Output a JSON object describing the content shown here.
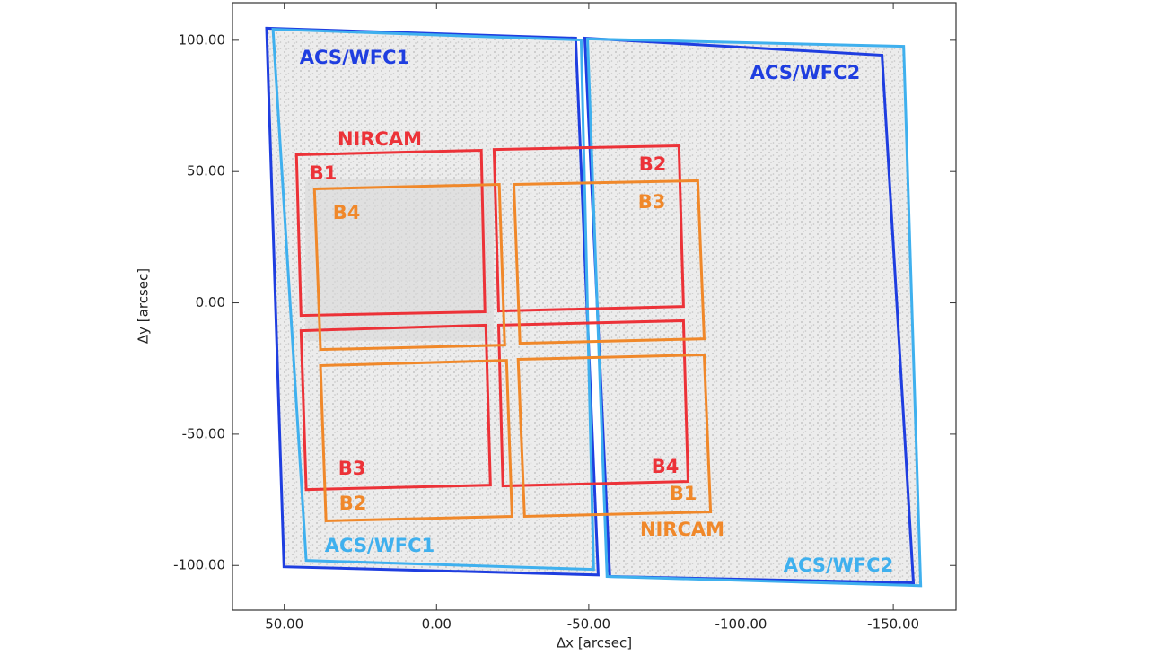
{
  "chart_data": {
    "type": "footprint",
    "xlabel": "Δx  [arcsec]",
    "ylabel": "Δy  [arcsec]",
    "xlim": [
      67,
      -170.6
    ],
    "ylim": [
      -117,
      114.3
    ],
    "xticks": [
      {
        "value": 50,
        "label": "50.00"
      },
      {
        "value": 0,
        "label": "0.00"
      },
      {
        "value": -50,
        "label": "-50.00"
      },
      {
        "value": -100,
        "label": "-100.00"
      },
      {
        "value": -150,
        "label": "-150.00"
      }
    ],
    "yticks": [
      {
        "value": 100,
        "label": "100.00"
      },
      {
        "value": 50,
        "label": "50.00"
      },
      {
        "value": 0,
        "label": "0.00"
      },
      {
        "value": -50,
        "label": "-50.00"
      },
      {
        "value": -100,
        "label": "-100.00"
      }
    ],
    "series": [
      {
        "name": "ACS/WFC1",
        "color": "#1f3ee0",
        "x": [
          55.8,
          -45.7,
          -53.1,
          50.1
        ],
        "y": [
          104.6,
          100.8,
          -103.6,
          -100.5
        ]
      },
      {
        "name": "ACS/WFC2",
        "color": "#1f3ee0",
        "x": [
          -48.7,
          -146.3,
          -156.6,
          -56.9
        ],
        "y": [
          100.8,
          94.3,
          -106.6,
          -104.2
        ]
      },
      {
        "name": "ACS/WFC1",
        "color": "#3fb0ee",
        "x": [
          53.7,
          -47.5,
          -51.6,
          42.8
        ],
        "y": [
          104.2,
          100.1,
          -101.5,
          -98.1
        ]
      },
      {
        "name": "ACS/WFC2",
        "color": "#3fb0ee",
        "x": [
          -49.6,
          -153.4,
          -159.0,
          -56.0
        ],
        "y": [
          100.5,
          97.7,
          -107.7,
          -104.2
        ]
      },
      {
        "name": "NIRCAM",
        "color": "#ec3238",
        "detectors": [
          {
            "name": "B1",
            "x": [
              46.0,
              -14.7,
              -15.9,
              44.5
            ],
            "y": [
              56.4,
              58.1,
              -3.4,
              -4.8
            ]
          },
          {
            "name": "B2",
            "x": [
              -18.9,
              -79.6,
              -81.1,
              -20.4
            ],
            "y": [
              58.4,
              59.8,
              -1.4,
              -3.1
            ]
          },
          {
            "name": "B3",
            "x": [
              44.5,
              -16.2,
              -17.7,
              42.8
            ],
            "y": [
              -10.6,
              -8.5,
              -69.4,
              -71.1
            ]
          },
          {
            "name": "B4",
            "x": [
              -20.4,
              -81.1,
              -82.6,
              -21.8
            ],
            "y": [
              -8.5,
              -6.8,
              -68.0,
              -69.7
            ]
          }
        ]
      },
      {
        "name": "NIRCAM",
        "color": "#f0882a",
        "detectors": [
          {
            "name": "B4",
            "x": [
              40.1,
              -20.6,
              -22.4,
              38.1
            ],
            "y": [
              43.4,
              45.1,
              -16.1,
              -17.8
            ]
          },
          {
            "name": "B3",
            "x": [
              -25.4,
              -85.8,
              -87.9,
              -27.4
            ],
            "y": [
              45.1,
              46.5,
              -13.7,
              -15.4
            ]
          },
          {
            "name": "B2",
            "x": [
              38.1,
              -23.0,
              -24.8,
              36.3
            ],
            "y": [
              -23.9,
              -21.9,
              -81.3,
              -83.0
            ]
          },
          {
            "name": "B1",
            "x": [
              -26.8,
              -87.9,
              -90.0,
              -28.9
            ],
            "y": [
              -21.5,
              -19.8,
              -79.6,
              -81.3
            ]
          }
        ]
      }
    ]
  }
}
